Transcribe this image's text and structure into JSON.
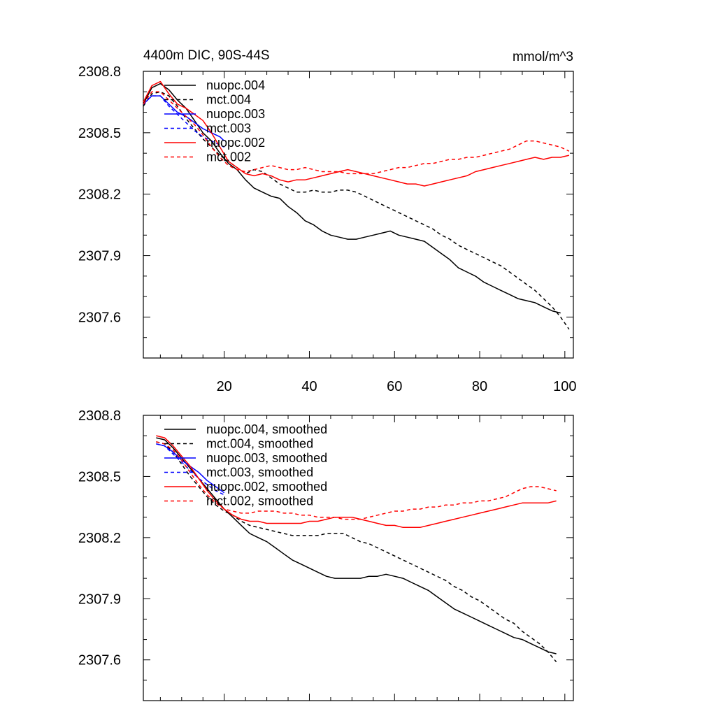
{
  "chart_data": [
    {
      "type": "line",
      "title": "4400m DIC, 90S-44S",
      "units": "mmol/m^3",
      "xlabel": "",
      "ylabel": "",
      "xlim": [
        1,
        102
      ],
      "ylim": [
        2307.4,
        2308.8
      ],
      "xticks": [
        20,
        40,
        60,
        80,
        100
      ],
      "xtick_labels": [
        "20",
        "40",
        "60",
        "80",
        "100"
      ],
      "yticks": [
        2307.6,
        2307.9,
        2308.2,
        2308.5,
        2308.8
      ],
      "ytick_labels": [
        "2307.6",
        "2307.9",
        "2308.2",
        "2308.5",
        "2308.8"
      ],
      "show_xtick_labels": true,
      "legend_position": "top-left",
      "series": [
        {
          "name": "nuopc.004",
          "color": "#000000",
          "dash": "solid",
          "x": [
            1,
            3,
            5,
            7,
            9,
            11,
            13,
            15,
            17,
            19,
            21,
            23,
            25,
            27,
            29,
            31,
            33,
            35,
            37,
            39,
            41,
            43,
            45,
            47,
            49,
            51,
            53,
            55,
            57,
            59,
            61,
            63,
            65,
            67,
            69,
            71,
            73,
            75,
            77,
            79,
            81,
            83,
            85,
            87,
            89,
            91,
            93,
            95,
            97,
            99
          ],
          "y": [
            2308.64,
            2308.72,
            2308.74,
            2308.71,
            2308.66,
            2308.62,
            2308.56,
            2308.5,
            2308.46,
            2308.4,
            2308.35,
            2308.32,
            2308.27,
            2308.23,
            2308.21,
            2308.19,
            2308.18,
            2308.14,
            2308.11,
            2308.07,
            2308.05,
            2308.02,
            2308.0,
            2307.99,
            2307.98,
            2307.98,
            2307.99,
            2308.0,
            2308.01,
            2308.02,
            2308.0,
            2307.99,
            2307.98,
            2307.97,
            2307.94,
            2307.91,
            2307.88,
            2307.84,
            2307.82,
            2307.8,
            2307.77,
            2307.75,
            2307.73,
            2307.71,
            2307.69,
            2307.68,
            2307.67,
            2307.65,
            2307.63,
            2307.62
          ]
        },
        {
          "name": "mct.004",
          "color": "#000000",
          "dash": "dashed",
          "x": [
            1,
            3,
            5,
            7,
            9,
            11,
            13,
            15,
            17,
            19,
            21,
            23,
            25,
            27,
            29,
            31,
            33,
            35,
            37,
            39,
            41,
            43,
            45,
            47,
            49,
            51,
            53,
            55,
            57,
            59,
            61,
            63,
            65,
            67,
            69,
            71,
            73,
            75,
            77,
            79,
            81,
            83,
            85,
            87,
            89,
            91,
            93,
            95,
            97,
            99,
            101
          ],
          "y": [
            2308.63,
            2308.69,
            2308.7,
            2308.68,
            2308.63,
            2308.57,
            2308.52,
            2308.47,
            2308.43,
            2308.39,
            2308.36,
            2308.33,
            2308.3,
            2308.32,
            2308.31,
            2308.28,
            2308.25,
            2308.23,
            2308.21,
            2308.21,
            2308.22,
            2308.21,
            2308.21,
            2308.22,
            2308.22,
            2308.21,
            2308.19,
            2308.17,
            2308.15,
            2308.13,
            2308.11,
            2308.09,
            2308.07,
            2308.05,
            2308.03,
            2308.0,
            2307.98,
            2307.95,
            2307.93,
            2307.91,
            2307.89,
            2307.87,
            2307.85,
            2307.82,
            2307.79,
            2307.76,
            2307.73,
            2307.69,
            2307.65,
            2307.6,
            2307.54
          ]
        },
        {
          "name": "nuopc.003",
          "color": "#0000ff",
          "dash": "solid",
          "x": [
            1,
            3,
            5,
            7,
            9,
            11,
            13,
            15,
            17,
            19,
            20
          ],
          "y": [
            2308.64,
            2308.68,
            2308.68,
            2308.64,
            2308.6,
            2308.58,
            2308.55,
            2308.52,
            2308.5,
            2308.48,
            2308.46
          ]
        },
        {
          "name": "mct.003",
          "color": "#0000ff",
          "dash": "dashed",
          "x": [
            1,
            3,
            5,
            7,
            9,
            11,
            13,
            15,
            17,
            19,
            20
          ],
          "y": [
            2308.64,
            2308.68,
            2308.68,
            2308.63,
            2308.59,
            2308.55,
            2308.51,
            2308.48,
            2308.46,
            2308.44,
            2308.43
          ]
        },
        {
          "name": "nuopc.002",
          "color": "#ff0000",
          "dash": "solid",
          "x": [
            1,
            3,
            5,
            7,
            9,
            11,
            13,
            15,
            17,
            19,
            21,
            23,
            25,
            27,
            29,
            31,
            33,
            35,
            37,
            39,
            41,
            43,
            45,
            47,
            49,
            51,
            53,
            55,
            57,
            59,
            61,
            63,
            65,
            67,
            69,
            71,
            73,
            75,
            77,
            79,
            81,
            83,
            85,
            87,
            89,
            91,
            93,
            95,
            97,
            99,
            101
          ],
          "y": [
            2308.65,
            2308.73,
            2308.75,
            2308.69,
            2308.64,
            2308.62,
            2308.59,
            2308.56,
            2308.5,
            2308.43,
            2308.36,
            2308.33,
            2308.3,
            2308.29,
            2308.3,
            2308.29,
            2308.27,
            2308.26,
            2308.27,
            2308.27,
            2308.28,
            2308.29,
            2308.3,
            2308.31,
            2308.32,
            2308.31,
            2308.3,
            2308.29,
            2308.28,
            2308.27,
            2308.26,
            2308.25,
            2308.25,
            2308.24,
            2308.25,
            2308.26,
            2308.27,
            2308.28,
            2308.29,
            2308.31,
            2308.32,
            2308.33,
            2308.34,
            2308.35,
            2308.36,
            2308.37,
            2308.38,
            2308.37,
            2308.38,
            2308.38,
            2308.39
          ]
        },
        {
          "name": "mct.002",
          "color": "#ff0000",
          "dash": "dashed",
          "x": [
            1,
            3,
            5,
            7,
            9,
            11,
            13,
            15,
            17,
            19,
            21,
            23,
            25,
            27,
            29,
            31,
            33,
            35,
            37,
            39,
            41,
            43,
            45,
            47,
            49,
            51,
            53,
            55,
            57,
            59,
            61,
            63,
            65,
            67,
            69,
            71,
            73,
            75,
            77,
            79,
            81,
            83,
            85,
            87,
            89,
            91,
            93,
            95,
            97,
            99,
            101
          ],
          "y": [
            2308.64,
            2308.7,
            2308.7,
            2308.66,
            2308.62,
            2308.58,
            2308.54,
            2308.49,
            2308.43,
            2308.38,
            2308.34,
            2308.32,
            2308.31,
            2308.32,
            2308.33,
            2308.34,
            2308.33,
            2308.32,
            2308.32,
            2308.33,
            2308.32,
            2308.31,
            2308.31,
            2308.31,
            2308.3,
            2308.3,
            2308.3,
            2308.3,
            2308.31,
            2308.32,
            2308.33,
            2308.33,
            2308.34,
            2308.35,
            2308.35,
            2308.36,
            2308.37,
            2308.37,
            2308.38,
            2308.38,
            2308.39,
            2308.4,
            2308.41,
            2308.42,
            2308.44,
            2308.46,
            2308.46,
            2308.45,
            2308.44,
            2308.43,
            2308.41
          ]
        }
      ]
    },
    {
      "type": "line",
      "title": "",
      "units": "",
      "xlabel": "",
      "ylabel": "",
      "xlim": [
        1,
        102
      ],
      "ylim": [
        2307.4,
        2308.8
      ],
      "xticks": [
        20,
        40,
        60,
        80,
        100
      ],
      "xtick_labels": [],
      "yticks": [
        2307.6,
        2307.9,
        2308.2,
        2308.5,
        2308.8
      ],
      "ytick_labels": [
        "2307.6",
        "2307.9",
        "2308.2",
        "2308.5",
        "2308.8"
      ],
      "show_xtick_labels": false,
      "legend_position": "top-left",
      "series": [
        {
          "name": "nuopc.004, smoothed",
          "color": "#000000",
          "dash": "solid",
          "x": [
            4,
            6,
            8,
            10,
            12,
            14,
            16,
            18,
            20,
            22,
            24,
            26,
            28,
            30,
            32,
            34,
            36,
            38,
            40,
            42,
            44,
            46,
            48,
            50,
            52,
            54,
            56,
            58,
            60,
            62,
            64,
            66,
            68,
            70,
            72,
            74,
            76,
            78,
            80,
            82,
            84,
            86,
            88,
            90,
            92,
            94,
            96,
            98
          ],
          "y": [
            2308.69,
            2308.68,
            2308.64,
            2308.59,
            2308.54,
            2308.49,
            2308.44,
            2308.39,
            2308.34,
            2308.3,
            2308.26,
            2308.22,
            2308.2,
            2308.18,
            2308.15,
            2308.12,
            2308.09,
            2308.07,
            2308.05,
            2308.03,
            2308.01,
            2308.0,
            2308.0,
            2308.0,
            2308.0,
            2308.01,
            2308.01,
            2308.02,
            2308.01,
            2308.0,
            2307.98,
            2307.96,
            2307.94,
            2307.91,
            2307.88,
            2307.85,
            2307.83,
            2307.81,
            2307.79,
            2307.77,
            2307.75,
            2307.73,
            2307.71,
            2307.7,
            2307.68,
            2307.66,
            2307.64,
            2307.63
          ]
        },
        {
          "name": "mct.004, smoothed",
          "color": "#000000",
          "dash": "dashed",
          "x": [
            4,
            6,
            8,
            10,
            12,
            14,
            16,
            18,
            20,
            22,
            24,
            26,
            28,
            30,
            32,
            34,
            36,
            38,
            40,
            42,
            44,
            46,
            48,
            50,
            52,
            54,
            56,
            58,
            60,
            62,
            64,
            66,
            68,
            70,
            72,
            74,
            76,
            78,
            80,
            82,
            84,
            86,
            88,
            90,
            92,
            94,
            96,
            98
          ],
          "y": [
            2308.67,
            2308.66,
            2308.62,
            2308.56,
            2308.5,
            2308.45,
            2308.4,
            2308.36,
            2308.33,
            2308.31,
            2308.28,
            2308.26,
            2308.25,
            2308.24,
            2308.23,
            2308.22,
            2308.21,
            2308.21,
            2308.21,
            2308.21,
            2308.22,
            2308.22,
            2308.22,
            2308.2,
            2308.18,
            2308.17,
            2308.15,
            2308.13,
            2308.11,
            2308.09,
            2308.07,
            2308.05,
            2308.03,
            2308.01,
            2307.99,
            2307.96,
            2307.94,
            2307.91,
            2307.89,
            2307.86,
            2307.83,
            2307.8,
            2307.78,
            2307.74,
            2307.71,
            2307.68,
            2307.64,
            2307.59
          ]
        },
        {
          "name": "nuopc.003, smoothed",
          "color": "#0000ff",
          "dash": "solid",
          "x": [
            4,
            6,
            8,
            10,
            12,
            14,
            16,
            18,
            20
          ],
          "y": [
            2308.66,
            2308.65,
            2308.62,
            2308.58,
            2308.55,
            2308.52,
            2308.48,
            2308.45,
            2308.42
          ]
        },
        {
          "name": "mct.003, smoothed",
          "color": "#0000ff",
          "dash": "dashed",
          "x": [
            4,
            6,
            8,
            10,
            12,
            14,
            16,
            18,
            20
          ],
          "y": [
            2308.66,
            2308.65,
            2308.61,
            2308.57,
            2308.53,
            2308.49,
            2308.46,
            2308.43,
            2308.41
          ]
        },
        {
          "name": "nuopc.002, smoothed",
          "color": "#ff0000",
          "dash": "solid",
          "x": [
            4,
            6,
            8,
            10,
            12,
            14,
            16,
            18,
            20,
            22,
            24,
            26,
            28,
            30,
            32,
            34,
            36,
            38,
            40,
            42,
            44,
            46,
            48,
            50,
            52,
            54,
            56,
            58,
            60,
            62,
            64,
            66,
            68,
            70,
            72,
            74,
            76,
            78,
            80,
            82,
            84,
            86,
            88,
            90,
            92,
            94,
            96,
            98
          ],
          "y": [
            2308.7,
            2308.69,
            2308.65,
            2308.6,
            2308.55,
            2308.49,
            2308.43,
            2308.38,
            2308.34,
            2308.31,
            2308.29,
            2308.28,
            2308.28,
            2308.27,
            2308.27,
            2308.27,
            2308.27,
            2308.27,
            2308.28,
            2308.28,
            2308.29,
            2308.3,
            2308.3,
            2308.3,
            2308.29,
            2308.28,
            2308.27,
            2308.26,
            2308.26,
            2308.25,
            2308.25,
            2308.25,
            2308.26,
            2308.27,
            2308.28,
            2308.29,
            2308.3,
            2308.31,
            2308.32,
            2308.33,
            2308.34,
            2308.35,
            2308.36,
            2308.37,
            2308.37,
            2308.37,
            2308.37,
            2308.38
          ]
        },
        {
          "name": "mct.002, smoothed",
          "color": "#ff0000",
          "dash": "dashed",
          "x": [
            4,
            6,
            8,
            10,
            12,
            14,
            16,
            18,
            20,
            22,
            24,
            26,
            28,
            30,
            32,
            34,
            36,
            38,
            40,
            42,
            44,
            46,
            48,
            50,
            52,
            54,
            56,
            58,
            60,
            62,
            64,
            66,
            68,
            70,
            72,
            74,
            76,
            78,
            80,
            82,
            84,
            86,
            88,
            90,
            92,
            94,
            96,
            98
          ],
          "y": [
            2308.67,
            2308.66,
            2308.63,
            2308.58,
            2308.52,
            2308.46,
            2308.41,
            2308.37,
            2308.34,
            2308.33,
            2308.32,
            2308.32,
            2308.33,
            2308.33,
            2308.33,
            2308.32,
            2308.32,
            2308.31,
            2308.31,
            2308.3,
            2308.3,
            2308.3,
            2308.29,
            2308.29,
            2308.29,
            2308.3,
            2308.31,
            2308.32,
            2308.33,
            2308.33,
            2308.34,
            2308.34,
            2308.35,
            2308.35,
            2308.36,
            2308.36,
            2308.37,
            2308.37,
            2308.38,
            2308.38,
            2308.39,
            2308.4,
            2308.42,
            2308.44,
            2308.45,
            2308.45,
            2308.44,
            2308.43
          ]
        }
      ]
    }
  ]
}
